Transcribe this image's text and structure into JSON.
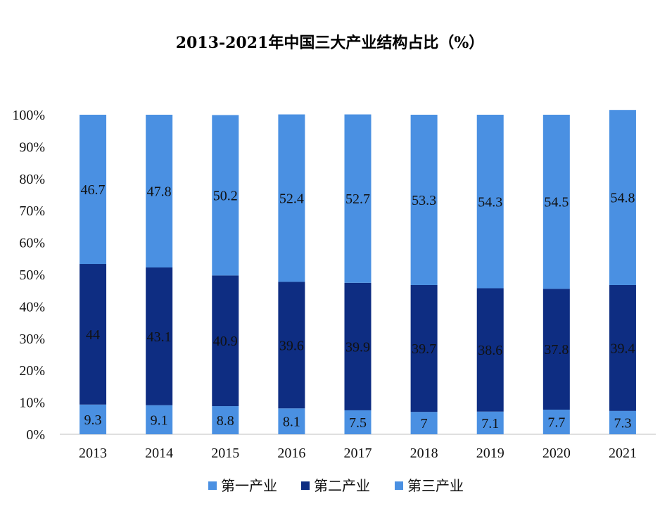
{
  "chart_data": {
    "type": "bar",
    "stacked": true,
    "title": "2013-2021年中国三大产业结构占比（%）",
    "xlabel": "",
    "ylabel": "",
    "ylim": [
      0,
      100
    ],
    "yticks": [
      "0%",
      "10%",
      "20%",
      "30%",
      "40%",
      "50%",
      "60%",
      "70%",
      "80%",
      "90%",
      "100%"
    ],
    "categories": [
      "2013",
      "2014",
      "2015",
      "2016",
      "2017",
      "2018",
      "2019",
      "2020",
      "2021"
    ],
    "series": [
      {
        "name": "第一产业",
        "color": "#4a90e2",
        "values": [
          9.3,
          9.1,
          8.8,
          8.1,
          7.5,
          7,
          7.1,
          7.7,
          7.3
        ]
      },
      {
        "name": "第二产业",
        "color": "#0e2d82",
        "values": [
          44,
          43.1,
          40.9,
          39.6,
          39.9,
          39.7,
          38.6,
          37.8,
          39.4
        ]
      },
      {
        "name": "第三产业",
        "color": "#4a90e2",
        "values": [
          46.7,
          47.8,
          50.2,
          52.4,
          52.7,
          53.3,
          54.3,
          54.5,
          54.8
        ]
      }
    ],
    "grid": false,
    "legend_position": "bottom"
  }
}
